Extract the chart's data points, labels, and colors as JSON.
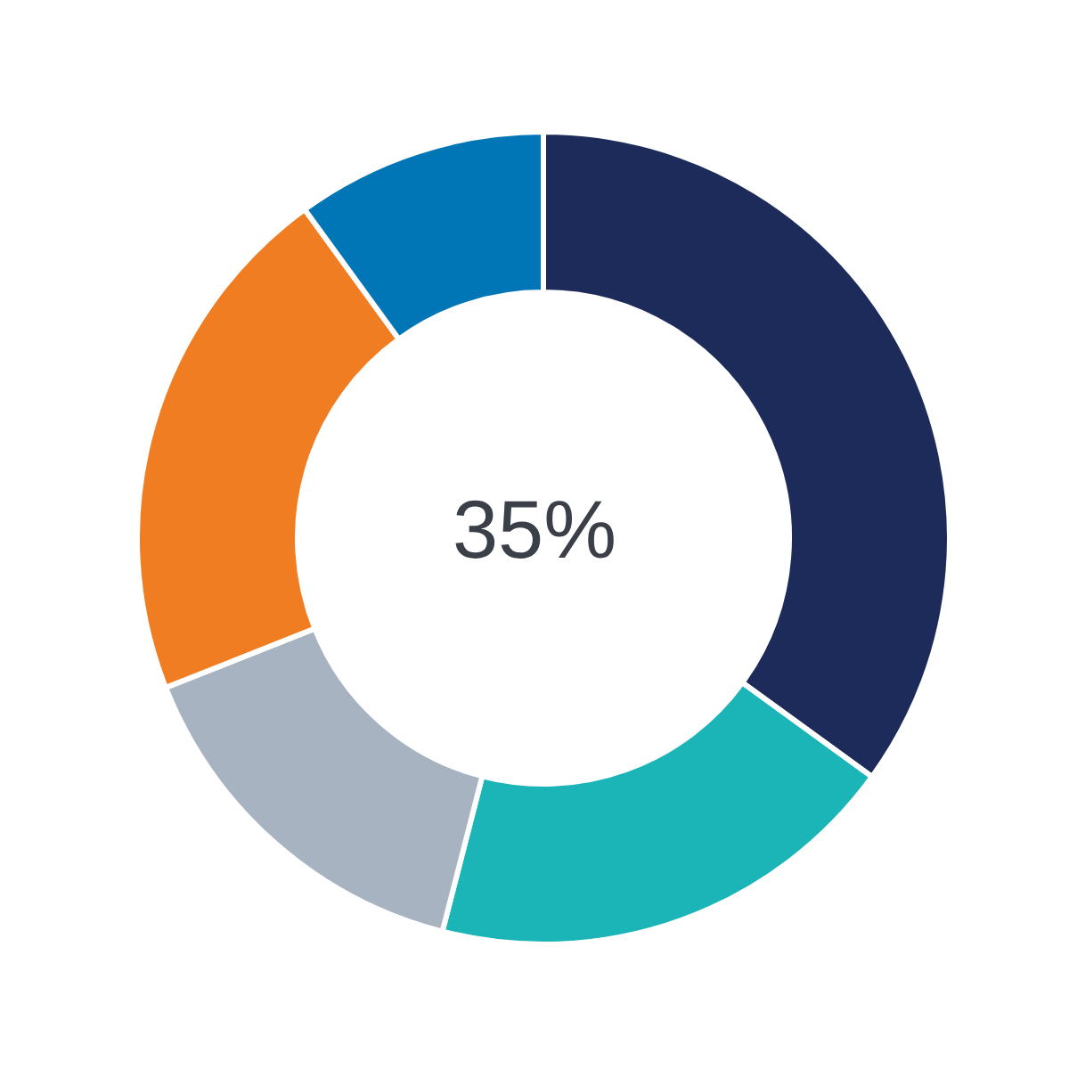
{
  "chart_data": {
    "type": "donut",
    "categories": [
      null,
      null,
      null,
      null,
      null
    ],
    "values": [
      35,
      19,
      15,
      21,
      10
    ],
    "colors": [
      "#1c2b5a",
      "#1bb5b7",
      "#a8b3c2",
      "#f07d21",
      "#0076b6"
    ],
    "annotations": [
      "35%"
    ]
  }
}
